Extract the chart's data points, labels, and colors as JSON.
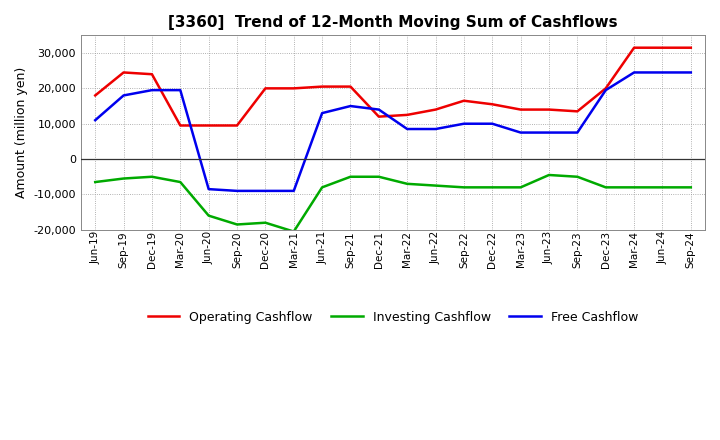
{
  "title": "[3360]  Trend of 12-Month Moving Sum of Cashflows",
  "ylabel": "Amount (million yen)",
  "x_labels": [
    "Jun-19",
    "Sep-19",
    "Dec-19",
    "Mar-20",
    "Jun-20",
    "Sep-20",
    "Dec-20",
    "Mar-21",
    "Jun-21",
    "Sep-21",
    "Dec-21",
    "Mar-22",
    "Jun-22",
    "Sep-22",
    "Dec-22",
    "Mar-23",
    "Jun-23",
    "Sep-23",
    "Dec-23",
    "Mar-24",
    "Jun-24",
    "Sep-24"
  ],
  "operating": [
    18000,
    24500,
    24000,
    9500,
    9500,
    9500,
    20000,
    20000,
    20500,
    20500,
    12000,
    12500,
    14000,
    16500,
    15500,
    14000,
    14000,
    13500,
    20000,
    31500,
    31500,
    31500
  ],
  "investing": [
    -6500,
    -5500,
    -5000,
    -6500,
    -16000,
    -18500,
    -18000,
    -20500,
    -8000,
    -5000,
    -5000,
    -7000,
    -7500,
    -8000,
    -8000,
    -8000,
    -4500,
    -5000,
    -8000,
    -8000,
    -8000,
    -8000
  ],
  "free": [
    11000,
    18000,
    19500,
    19500,
    -8500,
    -9000,
    -9000,
    -9000,
    13000,
    15000,
    14000,
    8500,
    8500,
    10000,
    10000,
    7500,
    7500,
    7500,
    19500,
    24500,
    24500,
    24500
  ],
  "operating_color": "#ee0000",
  "investing_color": "#00aa00",
  "free_color": "#0000ee",
  "ylim": [
    -20000,
    35000
  ],
  "yticks": [
    -20000,
    -10000,
    0,
    10000,
    20000,
    30000
  ],
  "background_color": "#ffffff",
  "grid_color": "#999999",
  "linewidth": 1.8
}
